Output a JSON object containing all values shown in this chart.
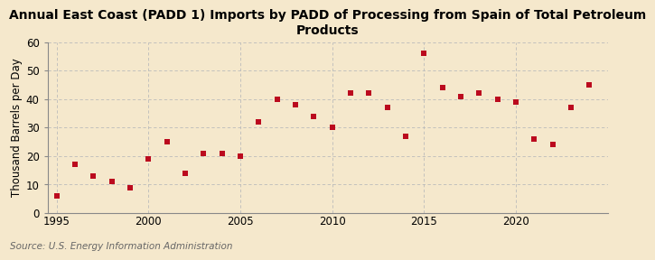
{
  "title": "Annual East Coast (PADD 1) Imports by PADD of Processing from Spain of Total Petroleum\nProducts",
  "ylabel": "Thousand Barrels per Day",
  "source": "Source: U.S. Energy Information Administration",
  "background_color": "#f5e8cc",
  "marker_color": "#bb0a1e",
  "years": [
    1995,
    1996,
    1997,
    1998,
    1999,
    2000,
    2001,
    2002,
    2003,
    2004,
    2005,
    2006,
    2007,
    2008,
    2009,
    2010,
    2011,
    2012,
    2013,
    2014,
    2015,
    2016,
    2017,
    2018,
    2019,
    2020,
    2021,
    2022,
    2023,
    2024
  ],
  "values": [
    6,
    17,
    13,
    11,
    9,
    19,
    25,
    14,
    21,
    21,
    20,
    32,
    40,
    38,
    34,
    30,
    42,
    42,
    37,
    27,
    56,
    44,
    41,
    42,
    40,
    39,
    26,
    24,
    37,
    45
  ],
  "xlim": [
    1994.5,
    2025
  ],
  "ylim": [
    0,
    60
  ],
  "xticks": [
    1995,
    2000,
    2005,
    2010,
    2015,
    2020
  ],
  "yticks": [
    0,
    10,
    20,
    30,
    40,
    50,
    60
  ],
  "grid_color": "#bbbbbb",
  "title_fontsize": 10,
  "label_fontsize": 8.5,
  "tick_fontsize": 8.5,
  "source_fontsize": 7.5
}
